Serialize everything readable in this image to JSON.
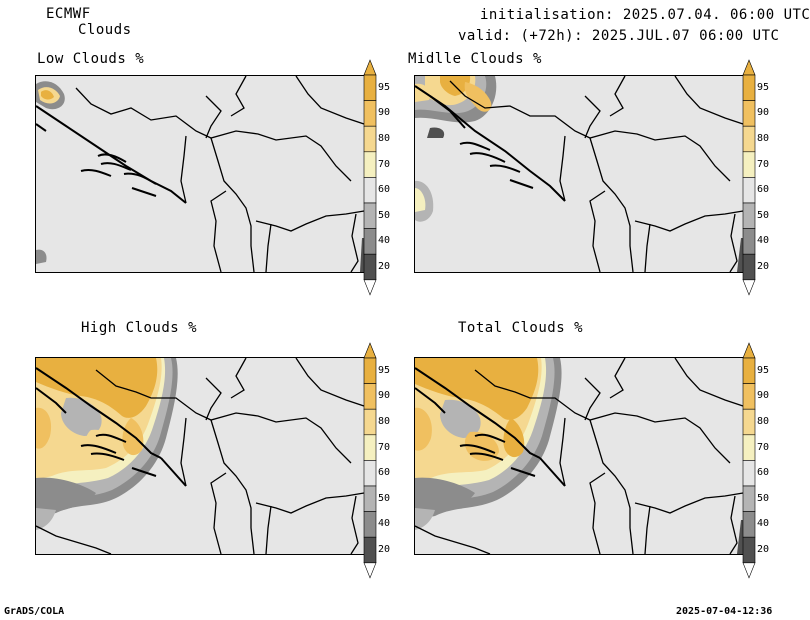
{
  "header": {
    "model": "ECMWF",
    "parameter": "Clouds",
    "init": "initialisation: 2025.07.04. 06:00 UTC",
    "valid": "valid: (+72h): 2025.JUL.07 06:00 UTC"
  },
  "panels": {
    "low": {
      "title": "Low Clouds %"
    },
    "middle": {
      "title": "Midlle Clouds %"
    },
    "high": {
      "title": "High Clouds %"
    },
    "total": {
      "title": "Total Clouds %"
    }
  },
  "colorbar": {
    "levels": [
      "95",
      "90",
      "80",
      "70",
      "60",
      "50",
      "40",
      "20"
    ],
    "colors": {
      "c95": "#e8b040",
      "c90": "#f0c060",
      "c80": "#f5d890",
      "c70": "#f5f0c0",
      "c60": "#e6e6e6",
      "c50": "#b4b4b4",
      "c40": "#8c8c8c",
      "c20": "#505050",
      "c0": "#ffffff"
    }
  },
  "footer": {
    "left": "GrADS/COLA",
    "right": "2025-07-04-12:36"
  }
}
